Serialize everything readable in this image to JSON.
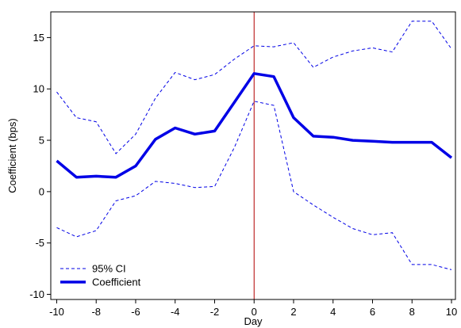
{
  "chart_data": {
    "type": "line",
    "title": "",
    "xlabel": "Day",
    "ylabel": "Coefficient (bps)",
    "xlim": [
      -10.3,
      10.2
    ],
    "ylim": [
      -10.5,
      17.5
    ],
    "xticks": [
      -10,
      -8,
      -6,
      -4,
      -2,
      0,
      2,
      4,
      6,
      8,
      10
    ],
    "xtick_labels": [
      "-10",
      "-8",
      "-6",
      "-4",
      "-2",
      "0",
      "2",
      "4",
      "6",
      "8",
      "10"
    ],
    "yticks": [
      -10,
      -5,
      0,
      5,
      10,
      15
    ],
    "ytick_labels": [
      "-10",
      "-5",
      "0",
      "5",
      "10",
      "15"
    ],
    "grid": false,
    "legend_position": "bottom-left",
    "reference_line": {
      "x": 0,
      "color": "#b30000"
    },
    "x": [
      -10,
      -9,
      -8,
      -7,
      -6,
      -5,
      -4,
      -3,
      -2,
      -1,
      0,
      1,
      2,
      3,
      4,
      5,
      6,
      7,
      8,
      9,
      10
    ],
    "series": [
      {
        "name": "95% CI",
        "style": "dashed",
        "color": "#0000e6",
        "upper": [
          9.7,
          7.2,
          6.8,
          3.7,
          5.6,
          9.1,
          11.6,
          10.9,
          11.4,
          12.9,
          14.2,
          14.1,
          14.5,
          12.1,
          13.1,
          13.7,
          14.0,
          13.6,
          16.6,
          16.6,
          13.9
        ],
        "lower": [
          -3.5,
          -4.4,
          -3.8,
          -0.9,
          -0.4,
          1.0,
          0.8,
          0.4,
          0.5,
          4.3,
          8.8,
          8.4,
          0.0,
          -1.3,
          -2.5,
          -3.6,
          -4.2,
          -4.0,
          -7.1,
          -7.1,
          -7.6
        ]
      },
      {
        "name": "Coefficient",
        "style": "solid",
        "color": "#0000e6",
        "values": [
          3.0,
          1.4,
          1.5,
          1.4,
          2.5,
          5.1,
          6.2,
          5.6,
          5.9,
          8.7,
          11.5,
          11.2,
          7.2,
          5.4,
          5.3,
          5.0,
          4.9,
          4.8,
          4.8,
          4.8,
          3.3
        ]
      }
    ]
  }
}
